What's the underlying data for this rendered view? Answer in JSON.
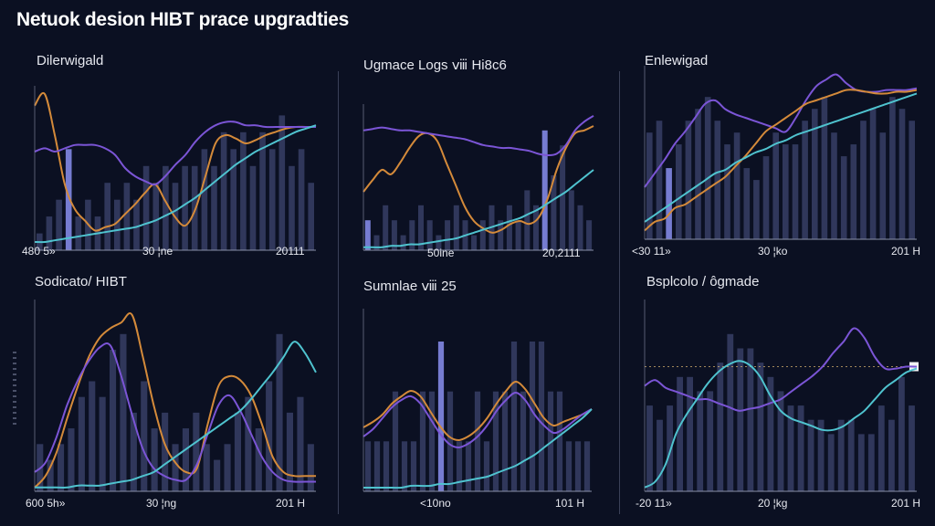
{
  "page": {
    "title": "Netuok desion HIBT prace upgradties"
  },
  "colors": {
    "background": "#0b1022",
    "bar": "#6f79b8",
    "bar_highlight": "#8a8ff0",
    "orange": "#d48a3a",
    "purple": "#7b55d6",
    "cyan": "#4fc3cf",
    "axis": "#8a90a8"
  },
  "chart_data": [
    {
      "type": "line",
      "title": "Dilerwigald",
      "x_ticks": [
        "480 5»",
        "30 ¦ne",
        "20111"
      ],
      "bars": [
        1,
        2,
        3,
        6,
        2,
        3,
        2,
        4,
        3,
        4,
        3,
        5,
        4,
        5,
        4,
        5,
        5,
        6,
        5,
        7,
        6,
        7,
        5,
        7,
        6,
        8,
        5,
        6,
        4
      ],
      "highlight_bars": [
        3
      ],
      "series": [
        {
          "color": "orange",
          "values": [
            88,
            95,
            70,
            40,
            25,
            18,
            12,
            14,
            16,
            22,
            28,
            35,
            40,
            30,
            20,
            15,
            25,
            45,
            65,
            70,
            68,
            65,
            67,
            70,
            72,
            74,
            75,
            75,
            75
          ]
        },
        {
          "color": "purple",
          "values": [
            60,
            62,
            60,
            62,
            64,
            64,
            64,
            62,
            58,
            50,
            45,
            42,
            40,
            45,
            52,
            58,
            66,
            72,
            76,
            78,
            78,
            76,
            76,
            75,
            75,
            75,
            75,
            75,
            75
          ]
        },
        {
          "color": "cyan",
          "values": [
            5,
            5,
            6,
            7,
            8,
            9,
            10,
            11,
            12,
            13,
            14,
            16,
            18,
            21,
            24,
            28,
            32,
            37,
            42,
            47,
            52,
            56,
            60,
            63,
            66,
            69,
            72,
            74,
            76
          ]
        }
      ]
    },
    {
      "type": "line",
      "title": "Ugmace Logs ⅷ Hi8c6",
      "x_ticks": [
        "50ine",
        "20,2111"
      ],
      "bars": [
        2,
        1,
        3,
        2,
        1,
        2,
        3,
        2,
        1,
        2,
        3,
        2,
        1,
        2,
        3,
        2,
        3,
        2,
        4,
        3,
        8,
        5,
        7,
        4,
        3,
        2
      ],
      "highlight_bars": [
        0,
        20
      ],
      "series": [
        {
          "color": "orange",
          "values": [
            40,
            48,
            55,
            52,
            60,
            70,
            78,
            80,
            75,
            60,
            45,
            30,
            20,
            15,
            12,
            14,
            18,
            20,
            18,
            22,
            35,
            55,
            70,
            80,
            82,
            85
          ]
        },
        {
          "color": "purple",
          "values": [
            82,
            83,
            84,
            83,
            82,
            82,
            81,
            80,
            79,
            78,
            77,
            76,
            74,
            72,
            71,
            70,
            70,
            69,
            68,
            66,
            65,
            66,
            72,
            82,
            88,
            92
          ]
        },
        {
          "color": "cyan",
          "values": [
            2,
            2,
            2,
            3,
            3,
            4,
            4,
            5,
            6,
            7,
            8,
            10,
            12,
            14,
            16,
            18,
            20,
            22,
            25,
            28,
            32,
            36,
            40,
            45,
            50,
            55
          ]
        }
      ]
    },
    {
      "type": "line",
      "title": "Enlewigad",
      "x_ticks": [
        "<30 11»",
        "30 ¦ko",
        "201 H"
      ],
      "bars": [
        9,
        10,
        6,
        8,
        10,
        11,
        12,
        10,
        8,
        9,
        6,
        5,
        7,
        9,
        8,
        8,
        10,
        11,
        12,
        9,
        7,
        8,
        10,
        11,
        9,
        12,
        11,
        10
      ],
      "highlight_bars": [
        2
      ],
      "series": [
        {
          "color": "purple",
          "values": [
            30,
            38,
            46,
            55,
            62,
            70,
            78,
            80,
            75,
            72,
            70,
            68,
            66,
            64,
            62,
            70,
            80,
            88,
            92,
            95,
            90,
            86,
            85,
            85,
            86,
            86,
            86,
            87
          ]
        },
        {
          "color": "orange",
          "values": [
            5,
            10,
            12,
            18,
            20,
            24,
            28,
            32,
            36,
            42,
            48,
            55,
            62,
            66,
            70,
            74,
            78,
            80,
            82,
            84,
            86,
            86,
            85,
            84,
            84,
            85,
            85,
            86
          ]
        },
        {
          "color": "cyan",
          "values": [
            10,
            14,
            18,
            22,
            26,
            30,
            34,
            38,
            40,
            44,
            47,
            50,
            52,
            55,
            57,
            60,
            62,
            64,
            66,
            68,
            70,
            72,
            74,
            76,
            78,
            80,
            82,
            84
          ]
        }
      ]
    },
    {
      "type": "line",
      "title": "Sodicato/ HIBT",
      "x_ticks": [
        "600 5h»",
        "30 ¦ng",
        "201 H"
      ],
      "bars": [
        3,
        2,
        3,
        4,
        6,
        7,
        6,
        9,
        10,
        5,
        7,
        4,
        5,
        3,
        4,
        5,
        3,
        2,
        3,
        5,
        6,
        4,
        7,
        10,
        5,
        6,
        3
      ],
      "highlight_bars": [],
      "series": [
        {
          "color": "orange",
          "values": [
            2,
            8,
            20,
            38,
            55,
            70,
            80,
            85,
            88,
            92,
            70,
            45,
            25,
            15,
            10,
            12,
            35,
            55,
            60,
            58,
            50,
            35,
            18,
            10,
            8,
            8,
            8
          ]
        },
        {
          "color": "purple",
          "values": [
            10,
            15,
            28,
            45,
            58,
            68,
            75,
            76,
            60,
            40,
            22,
            12,
            8,
            6,
            6,
            14,
            30,
            45,
            50,
            42,
            30,
            18,
            10,
            6,
            5,
            5,
            5
          ]
        },
        {
          "color": "cyan",
          "values": [
            2,
            2,
            2,
            2,
            3,
            3,
            3,
            4,
            5,
            6,
            8,
            10,
            14,
            18,
            22,
            26,
            30,
            34,
            38,
            42,
            48,
            55,
            62,
            70,
            78,
            72,
            62
          ]
        }
      ]
    },
    {
      "type": "line",
      "title": "Sumnlae ⅷ 25",
      "x_ticks": [
        "<10no",
        "101 H"
      ],
      "bars": [
        1,
        1,
        1,
        2,
        1,
        1,
        2,
        2,
        3,
        2,
        1,
        1,
        2,
        1,
        2,
        2,
        3,
        2,
        3,
        3,
        2,
        2,
        1,
        1,
        1
      ],
      "highlight_bars": [
        8
      ],
      "series": [
        {
          "color": "orange",
          "values": [
            35,
            38,
            42,
            48,
            52,
            55,
            52,
            44,
            36,
            30,
            28,
            30,
            34,
            40,
            48,
            55,
            60,
            56,
            48,
            40,
            36,
            38,
            40,
            42,
            45
          ]
        },
        {
          "color": "purple",
          "values": [
            30,
            34,
            40,
            46,
            50,
            52,
            48,
            40,
            32,
            26,
            24,
            26,
            30,
            36,
            44,
            50,
            54,
            50,
            42,
            36,
            32,
            34,
            38,
            42,
            45
          ]
        },
        {
          "color": "cyan",
          "values": [
            2,
            2,
            2,
            2,
            2,
            3,
            3,
            3,
            4,
            4,
            5,
            6,
            7,
            8,
            10,
            12,
            14,
            17,
            20,
            24,
            28,
            32,
            36,
            40,
            45
          ]
        }
      ]
    },
    {
      "type": "line",
      "title": "Bsplcolo / ôgmade",
      "x_ticks": [
        "-20 11»",
        "20 ¦kg",
        "201 H"
      ],
      "bars": [
        6,
        5,
        6,
        8,
        8,
        7,
        7,
        9,
        11,
        10,
        10,
        9,
        8,
        7,
        6,
        6,
        5,
        5,
        4,
        5,
        5,
        4,
        4,
        6,
        5,
        8,
        6
      ],
      "highlight_bars": [],
      "series": [
        {
          "color": "purple",
          "values": [
            55,
            58,
            54,
            52,
            50,
            48,
            48,
            46,
            44,
            42,
            43,
            44,
            46,
            48,
            52,
            56,
            60,
            65,
            72,
            78,
            85,
            80,
            70,
            64,
            64,
            65,
            65
          ]
        },
        {
          "color": "cyan",
          "values": [
            2,
            5,
            14,
            30,
            40,
            48,
            56,
            62,
            66,
            68,
            66,
            60,
            50,
            42,
            38,
            36,
            34,
            32,
            32,
            34,
            38,
            42,
            48,
            54,
            58,
            62,
            64
          ]
        }
      ],
      "reference_line": 65
    }
  ]
}
